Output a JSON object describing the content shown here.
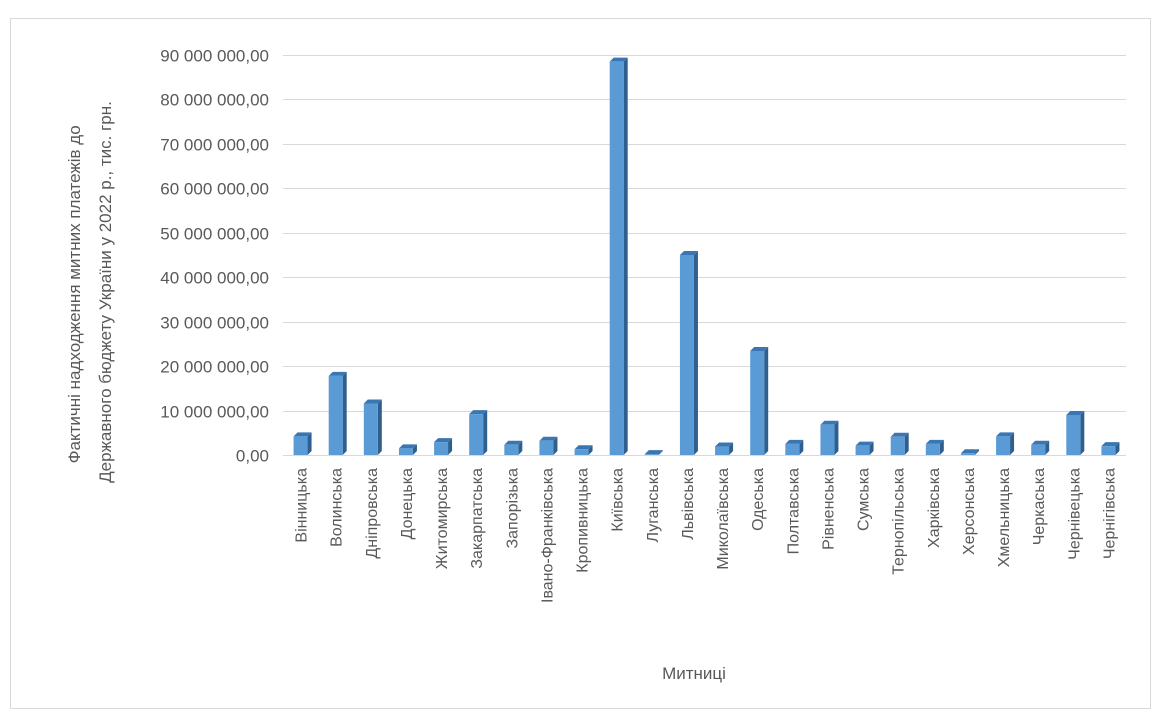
{
  "chart_data": {
    "type": "bar",
    "title": "",
    "xlabel": "Митниці",
    "ylabel_lines": [
      "Фактичні надходження митних платежів до",
      "Державного бюджету України у 2022 р., тис. грн."
    ],
    "ylim": [
      0,
      90000000
    ],
    "yticks": [
      0,
      10000000,
      20000000,
      30000000,
      40000000,
      50000000,
      60000000,
      70000000,
      80000000,
      90000000
    ],
    "ytick_labels": [
      "0,00",
      "10 000 000,00",
      "20 000 000,00",
      "30 000 000,00",
      "40 000 000,00",
      "50 000 000,00",
      "60 000 000,00",
      "70 000 000,00",
      "80 000 000,00",
      "90 000 000,00"
    ],
    "grid": true,
    "legend": "none",
    "bar_color": "#5B9BD5",
    "categories": [
      "Вінницька",
      "Волинська",
      "Дніпровська",
      "Донецька",
      "Житомирська",
      "Закарпатська",
      "Запорізька",
      "Івано-Франківська",
      "Кропивницька",
      "Київська",
      "Луганська",
      "Львівська",
      "Миколаївська",
      "Одеська",
      "Полтавська",
      "Рівненська",
      "Сумська",
      "Тернопільська",
      "Харківська",
      "Херсонська",
      "Хмельницька",
      "Черкаська",
      "Чернівецька",
      "Чернігівська"
    ],
    "values": [
      4200000,
      17800000,
      11600000,
      1500000,
      2900000,
      9200000,
      2300000,
      3200000,
      1300000,
      88500000,
      200000,
      45000000,
      1900000,
      23400000,
      2500000,
      6800000,
      2100000,
      4100000,
      2500000,
      400000,
      4200000,
      2300000,
      9000000,
      2000000
    ]
  }
}
